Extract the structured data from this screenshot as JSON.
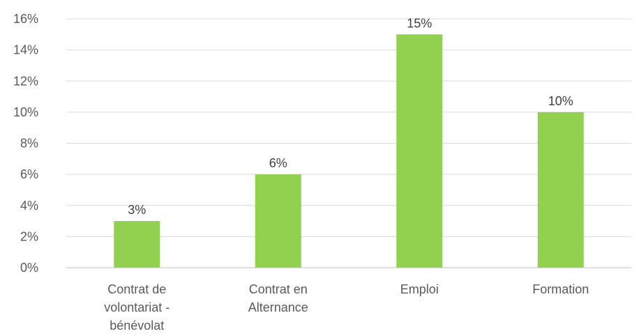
{
  "chart_data": {
    "type": "bar",
    "categories": [
      [
        "Contrat de",
        "volontariat -",
        "bénévolat"
      ],
      [
        "Contrat en",
        "Alternance"
      ],
      [
        "Emploi"
      ],
      [
        "Formation"
      ]
    ],
    "values": [
      3,
      6,
      15,
      10
    ],
    "data_labels": [
      "3%",
      "6%",
      "15%",
      "10%"
    ],
    "y_ticks": [
      0,
      2,
      4,
      6,
      8,
      10,
      12,
      14,
      16
    ],
    "y_tick_labels": [
      "0%",
      "2%",
      "4%",
      "6%",
      "8%",
      "10%",
      "12%",
      "14%",
      "16%"
    ],
    "ylim": [
      0,
      16
    ],
    "bar_color": "#92d050",
    "grid": true,
    "legend": "none"
  }
}
